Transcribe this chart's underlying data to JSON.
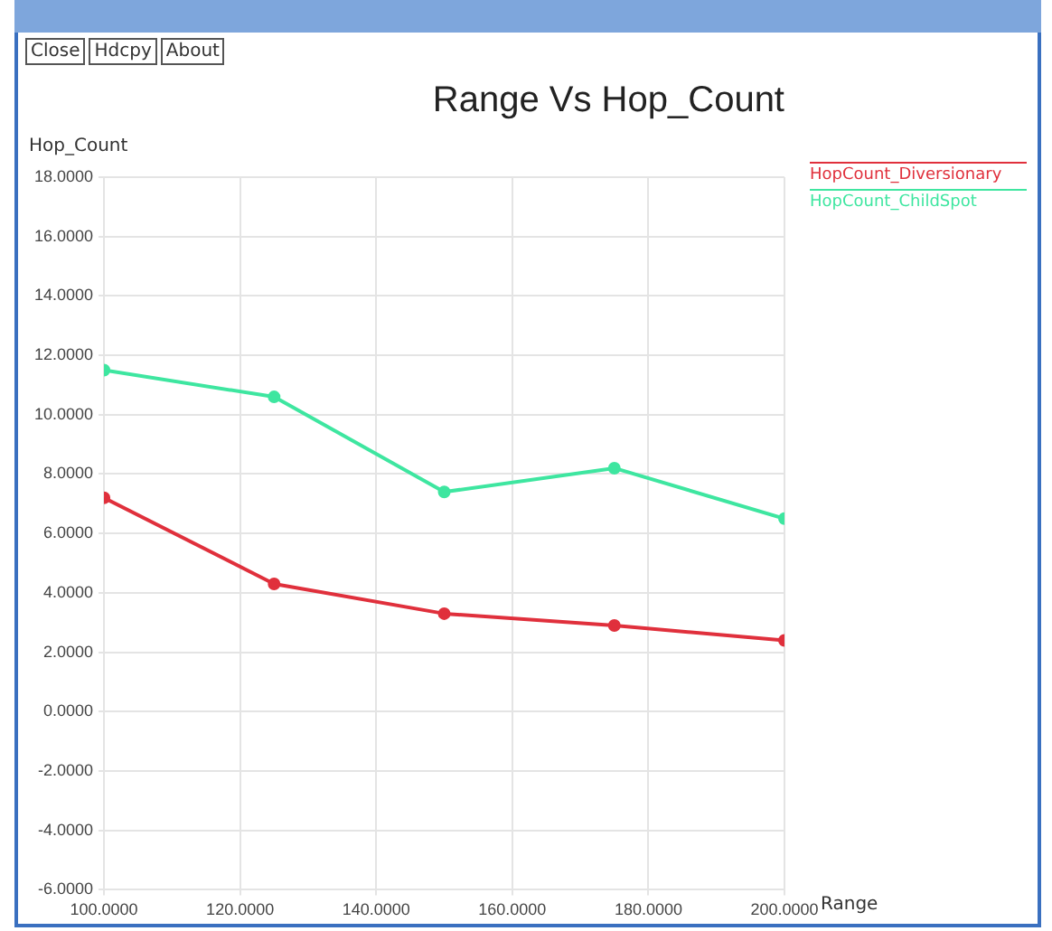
{
  "chart_data": {
    "type": "line",
    "title": "Range Vs Hop_Count",
    "xlabel": "Range",
    "ylabel": "Hop_Count",
    "annotations": [
      "Close",
      "Hdcpy",
      "About"
    ],
    "x": [
      100,
      125,
      150,
      175,
      200
    ],
    "series": [
      {
        "name": "HopCount_Diversionary",
        "color": "#e0303c",
        "values": [
          7.2,
          4.3,
          3.3,
          2.9,
          2.4
        ]
      },
      {
        "name": "HopCount_ChildSpot",
        "color": "#3ee6a0",
        "values": [
          11.5,
          10.6,
          7.4,
          8.2,
          6.5
        ]
      }
    ],
    "xlim": [
      100,
      200
    ],
    "xticks": [
      {
        "value": 100,
        "label": "100.0000"
      },
      {
        "value": 120,
        "label": "120.0000"
      },
      {
        "value": 140,
        "label": "140.0000"
      },
      {
        "value": 160,
        "label": "160.0000"
      },
      {
        "value": 180,
        "label": "180.0000"
      },
      {
        "value": 200,
        "label": "200.0000"
      }
    ],
    "ylim": [
      -6,
      18
    ],
    "yticks": [
      {
        "value": -6,
        "label": "-6.0000"
      },
      {
        "value": -4,
        "label": "-4.0000"
      },
      {
        "value": -2,
        "label": "-2.0000"
      },
      {
        "value": 0,
        "label": "0.0000"
      },
      {
        "value": 2,
        "label": "2.0000"
      },
      {
        "value": 4,
        "label": "4.0000"
      },
      {
        "value": 6,
        "label": "6.0000"
      },
      {
        "value": 8,
        "label": "8.0000"
      },
      {
        "value": 10,
        "label": "10.0000"
      },
      {
        "value": 12,
        "label": "12.0000"
      },
      {
        "value": 14,
        "label": "14.0000"
      },
      {
        "value": 16,
        "label": "16.0000"
      },
      {
        "value": 18,
        "label": "18.0000"
      }
    ],
    "grid": true,
    "legend": "top right",
    "marker": "circle",
    "line_style": "solid"
  }
}
